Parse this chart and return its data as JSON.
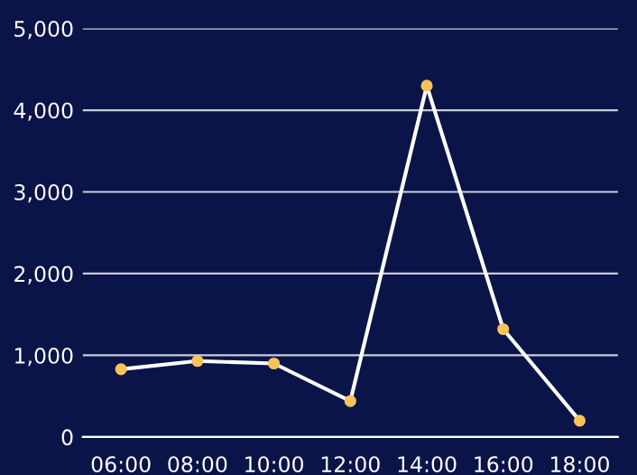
{
  "chart_data": {
    "type": "line",
    "categories": [
      "06:00",
      "08:00",
      "10:00",
      "12:00",
      "14:00",
      "16:00",
      "18:00"
    ],
    "series": [
      {
        "color": "#ffffff",
        "colors": [
          "#f7c35a",
          "#f7c35a",
          "#f7c35a",
          "#f7c35a",
          "#f7c35a",
          "#f7c35a",
          "#f7c35a"
        ],
        "values": [
          830,
          930,
          900,
          440,
          4300,
          1320,
          200
        ]
      }
    ],
    "ylim": [
      0,
      5000
    ],
    "yticks": [
      {
        "value": 0,
        "label": "0"
      },
      {
        "value": 1000,
        "label": "1,000"
      },
      {
        "value": 2000,
        "label": "2,000"
      },
      {
        "value": 3000,
        "label": "3,000"
      },
      {
        "value": 4000,
        "label": "4,000"
      },
      {
        "value": 5000,
        "label": "5,000"
      }
    ],
    "grid": "y",
    "marker": "circle",
    "line_style": "solid"
  }
}
